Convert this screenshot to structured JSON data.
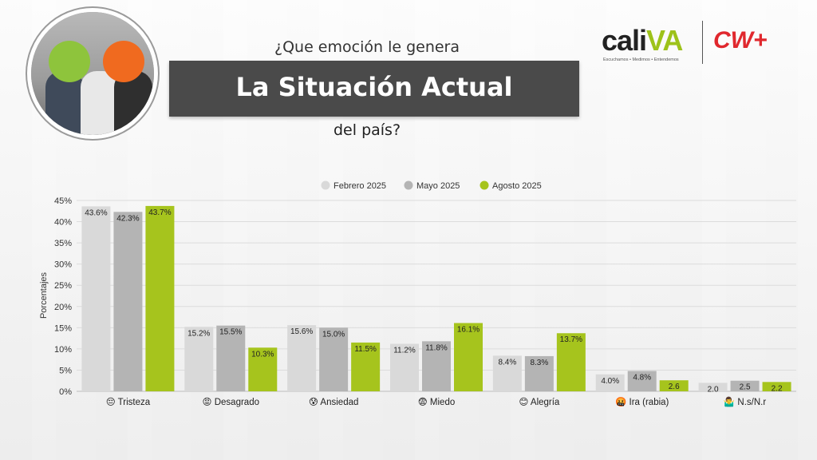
{
  "header": {
    "question_top": "¿Que emoción le genera",
    "title": "La Situación Actual",
    "question_bottom": "del país?"
  },
  "logos": {
    "cali_word": "cali",
    "cali_word_accent": "VA",
    "cali_tagline": "Escuchamos • Medimos • Entendemos",
    "cw_label": "CW+"
  },
  "colors": {
    "febrero": "#d9d9d9",
    "mayo": "#b4b4b4",
    "agosto": "#a6c41d",
    "title_bar": "#4a4a4a",
    "cw_red": "#e0282e"
  },
  "chart_data": {
    "type": "bar",
    "ylabel": "Porcentajes",
    "ylim": [
      0,
      45
    ],
    "yticks": [
      "0%",
      "5%",
      "10%",
      "15%",
      "20%",
      "25%",
      "30%",
      "35%",
      "40%",
      "45%"
    ],
    "legend_position": "top",
    "grid": true,
    "categories": [
      "😔 Tristeza",
      "😡 Desagrado",
      "😰 Ansiedad",
      "😨 Miedo",
      "😊 Alegría",
      "🤬 Ira (rabia)",
      "🤷‍♂️ N.s/N.r"
    ],
    "series": [
      {
        "name": "Febrero 2025",
        "values": [
          43.6,
          15.2,
          15.6,
          11.2,
          8.4,
          4.0,
          2.0
        ],
        "labels": [
          "43.6%",
          "15.2%",
          "15.6%",
          "11.2%",
          "8.4%",
          "4.0%",
          "2.0"
        ]
      },
      {
        "name": "Mayo 2025",
        "values": [
          42.3,
          15.5,
          15.0,
          11.8,
          8.3,
          4.8,
          2.5
        ],
        "labels": [
          "42.3%",
          "15.5%",
          "15.0%",
          "11.8%",
          "8.3%",
          "4.8%",
          "2.5"
        ]
      },
      {
        "name": "Agosto 2025",
        "values": [
          43.7,
          10.3,
          11.5,
          16.1,
          13.7,
          2.6,
          2.2
        ],
        "labels": [
          "43.7%",
          "10.3%",
          "11.5%",
          "16.1%",
          "13.7%",
          "2.6",
          "2.2"
        ]
      }
    ]
  }
}
